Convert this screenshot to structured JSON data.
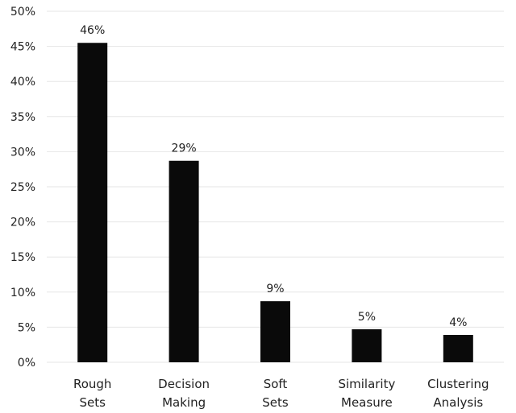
{
  "chart_data": {
    "type": "bar",
    "categories": [
      [
        "Rough",
        "Sets"
      ],
      [
        "Decision",
        "Making"
      ],
      [
        "Soft",
        "Sets"
      ],
      [
        "Similarity",
        "Measure"
      ],
      [
        "Clustering",
        "Analysis"
      ]
    ],
    "values": [
      45.5,
      28.7,
      8.7,
      4.7,
      3.9
    ],
    "data_labels": [
      "46%",
      "29%",
      "9%",
      "5%",
      "4%"
    ],
    "title": "",
    "xlabel": "",
    "ylabel": "",
    "ylim": [
      0,
      50
    ],
    "y_ticks": [
      "0%",
      "5%",
      "10%",
      "15%",
      "20%",
      "25%",
      "30%",
      "35%",
      "40%",
      "45%",
      "50%"
    ],
    "grid": true,
    "legend": "none",
    "bar_color": "#0a0a0a",
    "grid_color": "#e6e6e6"
  }
}
